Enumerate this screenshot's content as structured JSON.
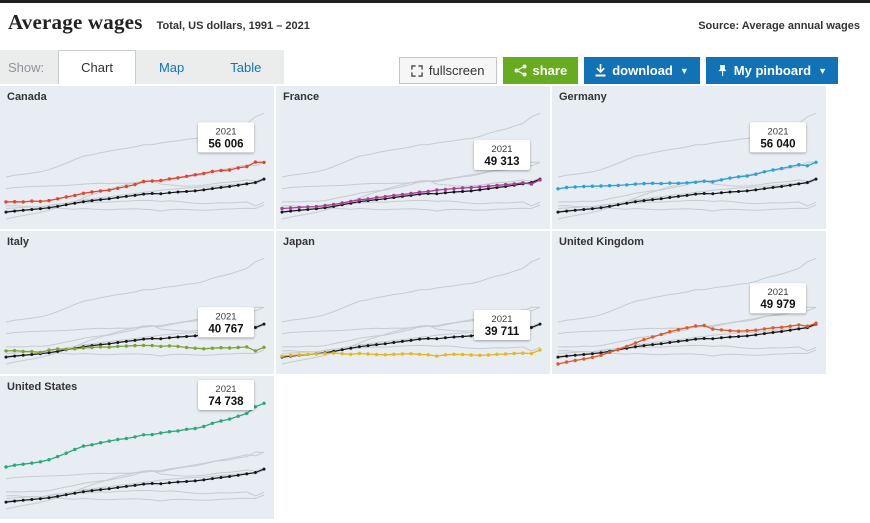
{
  "header": {
    "title": "Average wages",
    "subtitle": "Total, US dollars, 1991 – 2021",
    "source": "Source: Average annual wages"
  },
  "toolbar": {
    "show_label": "Show:",
    "tabs": [
      {
        "label": "Chart",
        "active": true
      },
      {
        "label": "Map",
        "active": false
      },
      {
        "label": "Table",
        "active": false
      }
    ],
    "buttons": {
      "fullscreen": "fullscreen",
      "share": "share",
      "download": "download",
      "pinboard": "My pinboard"
    }
  },
  "colors": {
    "panel_background": "#e7edf2",
    "context_line": "#c6ccd0",
    "reference_line": "#161616",
    "accent_blue": "#1173b6",
    "accent_green": "#67ac1e"
  },
  "chart_data": {
    "type": "line",
    "title": "Average wages",
    "subtitle": "Total, US dollars, 1991 – 2021",
    "x": [
      1991,
      1992,
      1993,
      1994,
      1995,
      1996,
      1997,
      1998,
      1999,
      2000,
      2001,
      2002,
      2003,
      2004,
      2005,
      2006,
      2007,
      2008,
      2009,
      2010,
      2011,
      2012,
      2013,
      2014,
      2015,
      2016,
      2017,
      2018,
      2019,
      2020,
      2021
    ],
    "value_range": [
      34000,
      76000
    ],
    "reference_key": "black_line",
    "series": {
      "Canada": [
        40900,
        41000,
        40900,
        41200,
        41100,
        41400,
        42100,
        42800,
        43400,
        44200,
        44700,
        45100,
        45400,
        46100,
        46800,
        47500,
        48700,
        48900,
        49100,
        49700,
        50100,
        50700,
        51300,
        51800,
        52500,
        52900,
        53100,
        53900,
        54400,
        56100,
        56006
      ],
      "France": [
        38400,
        38600,
        38800,
        39000,
        39100,
        39500,
        39900,
        40500,
        41100,
        41700,
        42000,
        42600,
        42900,
        43400,
        43700,
        44100,
        44600,
        44900,
        45400,
        45700,
        46000,
        46200,
        46400,
        46600,
        46900,
        47200,
        47500,
        47800,
        48200,
        47700,
        49313
      ],
      "Germany": [
        45900,
        46400,
        46600,
        46800,
        46900,
        47000,
        47100,
        47200,
        47400,
        47700,
        47900,
        48000,
        47900,
        48100,
        48000,
        48200,
        48400,
        48800,
        48600,
        49300,
        50000,
        50500,
        50800,
        51500,
        52400,
        53100,
        53700,
        54400,
        55100,
        54700,
        56040
      ],
      "Italy": [
        39400,
        39500,
        39200,
        39100,
        38800,
        39700,
        40100,
        40000,
        40200,
        40500,
        40700,
        40900,
        40800,
        41100,
        41200,
        41400,
        41500,
        41400,
        41100,
        41300,
        41100,
        40700,
        40400,
        40200,
        40400,
        40600,
        40500,
        40700,
        40900,
        39400,
        40767
      ],
      "Japan": [
        37400,
        37700,
        37900,
        38100,
        38200,
        38400,
        38600,
        38300,
        38100,
        38400,
        38200,
        38000,
        37900,
        38100,
        38200,
        38300,
        38100,
        37900,
        37400,
        37900,
        38100,
        38000,
        37800,
        37700,
        37800,
        38100,
        38200,
        38400,
        38500,
        38400,
        39711
      ],
      "United Kingdom": [
        34400,
        35100,
        35700,
        36300,
        36900,
        37700,
        38800,
        39900,
        41100,
        42400,
        43700,
        44700,
        45700,
        46700,
        47500,
        48200,
        48900,
        49100,
        47700,
        47400,
        47100,
        46900,
        47100,
        47300,
        47800,
        48200,
        48400,
        48800,
        49300,
        48800,
        49979
      ],
      "United States": [
        50400,
        51100,
        51500,
        51900,
        52400,
        53200,
        54400,
        55700,
        57100,
        58400,
        58900,
        59700,
        60300,
        60900,
        61300,
        61900,
        62700,
        62800,
        63400,
        63900,
        64200,
        64800,
        65100,
        65900,
        67100,
        68000,
        68700,
        69800,
        70900,
        73400,
        74738
      ],
      "black_line": [
        37000,
        37400,
        37700,
        38000,
        38300,
        38700,
        39200,
        39800,
        40400,
        41000,
        41400,
        41800,
        42100,
        42600,
        43000,
        43400,
        43900,
        44100,
        44000,
        44400,
        44700,
        44900,
        45100,
        45500,
        46000,
        46400,
        46800,
        47300,
        47800,
        48300,
        49600
      ]
    },
    "panels": [
      {
        "title": "Canada",
        "series": "Canada",
        "color": "#e8432d",
        "label_year": "2021",
        "label_value": "56 006"
      },
      {
        "title": "France",
        "series": "France",
        "color": "#a63d96",
        "label_year": "2021",
        "label_value": "49 313"
      },
      {
        "title": "Germany",
        "series": "Germany",
        "color": "#2ba0da",
        "label_year": "2021",
        "label_value": "56 040"
      },
      {
        "title": "Italy",
        "series": "Italy",
        "color": "#7ca433",
        "label_year": "2021",
        "label_value": "40 767"
      },
      {
        "title": "Japan",
        "series": "Japan",
        "color": "#e5b722",
        "label_year": "2021",
        "label_value": "39 711"
      },
      {
        "title": "United Kingdom",
        "series": "United Kingdom",
        "color": "#e2592b",
        "label_year": "2021",
        "label_value": "49 979"
      },
      {
        "title": "United States",
        "series": "United States",
        "color": "#2ea879",
        "label_year": "2021",
        "label_value": "74 738"
      }
    ]
  }
}
